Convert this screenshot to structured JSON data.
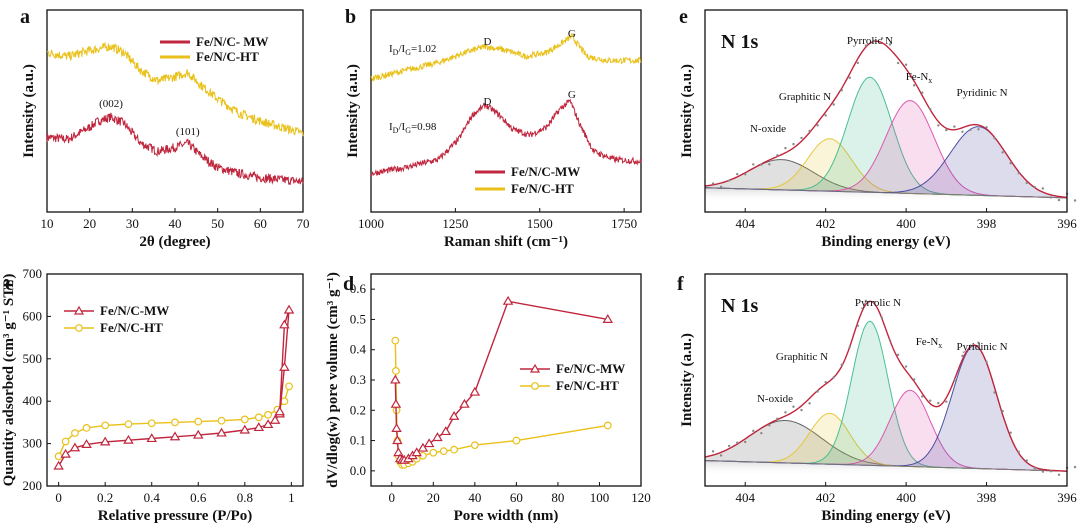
{
  "colors": {
    "mw": "#c0263d",
    "ht": "#e9c11a",
    "graphitic": "#e6c42a",
    "pyrrolic": "#39b98a",
    "fen": "#d94aa8",
    "pyridinic": "#3b3f9a",
    "noxide": "#555555",
    "envelope": "#c0263d"
  },
  "chart_data": [
    {
      "id": "a",
      "type": "line",
      "panel_label": "a",
      "xlabel": "2θ (degree)",
      "ylabel": "Intensity (a.u.)",
      "xlim": [
        10,
        70
      ],
      "xticks": [
        10,
        20,
        30,
        40,
        50,
        60,
        70
      ],
      "ylim": [
        0,
        1
      ],
      "legend": [
        "Fe/N/C- MW",
        "Fe/N/C-HT"
      ],
      "annotations": [
        "(002)",
        "(101)"
      ],
      "series": [
        {
          "name": "Fe/N/C- MW",
          "color": "mw",
          "x": [
            10,
            15,
            20,
            22,
            25,
            28,
            32,
            36,
            40,
            43,
            46,
            50,
            55,
            60,
            65,
            70
          ],
          "y": [
            0.37,
            0.36,
            0.42,
            0.45,
            0.47,
            0.44,
            0.34,
            0.3,
            0.32,
            0.34,
            0.28,
            0.22,
            0.19,
            0.17,
            0.16,
            0.15
          ]
        },
        {
          "name": "Fe/N/C-HT",
          "color": "ht",
          "x": [
            10,
            15,
            20,
            25,
            28,
            32,
            36,
            40,
            43,
            46,
            50,
            55,
            60,
            65,
            70
          ],
          "y": [
            0.79,
            0.77,
            0.8,
            0.82,
            0.79,
            0.7,
            0.65,
            0.67,
            0.69,
            0.63,
            0.56,
            0.49,
            0.45,
            0.42,
            0.39
          ]
        }
      ]
    },
    {
      "id": "b",
      "type": "line",
      "panel_label": "b",
      "xlabel": "Raman shift (cm⁻¹)",
      "ylabel": "Intensity (a.u.)",
      "xlim": [
        1000,
        1800
      ],
      "xticks": [
        1000,
        1250,
        1500,
        1750
      ],
      "ylim": [
        0,
        1
      ],
      "legend": [
        "Fe/N/C-MW",
        "Fe/N/C-HT"
      ],
      "annotations": [
        "I",
        "D",
        "/I",
        "G",
        "=1.02",
        "=0.98",
        "D",
        "G",
        "D",
        "G"
      ],
      "series": [
        {
          "name": "Fe/N/C-HT",
          "color": "ht",
          "x": [
            1000,
            1100,
            1200,
            1280,
            1340,
            1400,
            1460,
            1520,
            1560,
            1595,
            1640,
            1700,
            1800
          ],
          "y": [
            0.66,
            0.7,
            0.74,
            0.79,
            0.82,
            0.8,
            0.77,
            0.79,
            0.83,
            0.87,
            0.77,
            0.75,
            0.75
          ]
        },
        {
          "name": "Fe/N/C-MW",
          "color": "mw",
          "x": [
            1000,
            1100,
            1200,
            1260,
            1300,
            1340,
            1380,
            1420,
            1470,
            1520,
            1560,
            1590,
            1620,
            1660,
            1720,
            1800
          ],
          "y": [
            0.19,
            0.22,
            0.26,
            0.36,
            0.48,
            0.53,
            0.48,
            0.41,
            0.38,
            0.42,
            0.51,
            0.55,
            0.43,
            0.3,
            0.26,
            0.25
          ]
        }
      ]
    },
    {
      "id": "c",
      "type": "line",
      "panel_label": "c",
      "xlabel": "Relative pressure (P/Po)",
      "ylabel": "Quantity adsorbed (cm³ g⁻¹ STP)",
      "xlim": [
        -0.05,
        1.05
      ],
      "xticks": [
        0.0,
        0.2,
        0.4,
        0.6,
        0.8,
        1.0
      ],
      "ylim": [
        200,
        700
      ],
      "yticks": [
        200,
        300,
        400,
        500,
        600,
        700
      ],
      "legend": [
        "Fe/N/C-MW",
        "Fe/N/C-HT"
      ],
      "series": [
        {
          "name": "Fe/N/C-MW",
          "color": "mw",
          "x": [
            0.0,
            0.03,
            0.07,
            0.12,
            0.2,
            0.3,
            0.4,
            0.5,
            0.6,
            0.7,
            0.8,
            0.86,
            0.9,
            0.93,
            0.95,
            0.97,
            0.99,
            0.97,
            0.95
          ],
          "y": [
            247,
            275,
            290,
            298,
            304,
            308,
            312,
            316,
            320,
            325,
            332,
            338,
            345,
            355,
            370,
            480,
            615,
            580,
            375
          ]
        },
        {
          "name": "Fe/N/C-HT",
          "color": "ht",
          "x": [
            0.0,
            0.03,
            0.07,
            0.12,
            0.2,
            0.3,
            0.4,
            0.5,
            0.6,
            0.7,
            0.8,
            0.86,
            0.9,
            0.94,
            0.97,
            0.99
          ],
          "y": [
            270,
            305,
            325,
            337,
            343,
            346,
            348,
            350,
            352,
            354,
            357,
            362,
            368,
            380,
            400,
            435
          ]
        }
      ]
    },
    {
      "id": "d",
      "type": "line",
      "panel_label": "d",
      "xlabel": "Pore width (nm)",
      "ylabel": "dV/dlog(w) pore volume (cm³ g⁻¹)",
      "xlim": [
        -10,
        120
      ],
      "xticks": [
        0,
        20,
        40,
        60,
        80,
        100,
        120
      ],
      "ylim": [
        -0.05,
        0.65
      ],
      "yticks": [
        0.0,
        0.1,
        0.2,
        0.3,
        0.4,
        0.5,
        0.6
      ],
      "legend": [
        "Fe/N/C-MW",
        "Fe/N/C-HT"
      ],
      "series": [
        {
          "name": "Fe/N/C-MW",
          "color": "mw",
          "x": [
            1.7,
            2.0,
            2.3,
            2.7,
            3.2,
            4,
            5,
            6,
            8,
            10,
            12,
            15,
            18,
            22,
            26,
            30,
            35,
            40,
            56,
            104
          ],
          "y": [
            0.3,
            0.22,
            0.14,
            0.1,
            0.06,
            0.04,
            0.035,
            0.035,
            0.04,
            0.05,
            0.06,
            0.075,
            0.09,
            0.11,
            0.13,
            0.18,
            0.22,
            0.26,
            0.56,
            0.5
          ]
        },
        {
          "name": "Fe/N/C-HT",
          "color": "ht",
          "x": [
            1.7,
            2.0,
            2.3,
            2.7,
            3.2,
            4,
            5,
            6,
            8,
            10,
            12,
            15,
            20,
            25,
            30,
            40,
            60,
            104
          ],
          "y": [
            0.43,
            0.33,
            0.2,
            0.1,
            0.05,
            0.03,
            0.02,
            0.02,
            0.025,
            0.03,
            0.04,
            0.05,
            0.06,
            0.065,
            0.07,
            0.085,
            0.1,
            0.15
          ]
        }
      ]
    },
    {
      "id": "e",
      "type": "line",
      "panel_label": "e",
      "title": "N 1s",
      "xlabel": "Binding energy (eV)",
      "ylabel": "Intensity (a.u.)",
      "xlim": [
        405,
        396
      ],
      "xticks": [
        404,
        402,
        400,
        398,
        396
      ],
      "ylim": [
        0,
        1
      ],
      "components": [
        {
          "name": "N-oxide",
          "color": "noxide",
          "center": 403.1,
          "amp": 0.15,
          "sigma": 0.8
        },
        {
          "name": "Graphitic N",
          "color": "graphitic",
          "center": 401.9,
          "amp": 0.26,
          "sigma": 0.55
        },
        {
          "name": "Pyrrolic N",
          "color": "pyrrolic",
          "center": 400.9,
          "amp": 0.57,
          "sigma": 0.55
        },
        {
          "name": "Fe-N",
          "color": "fen",
          "center": 399.9,
          "amp": 0.46,
          "sigma": 0.6
        },
        {
          "name": "Pyridinic N",
          "color": "pyridinic",
          "center": 398.2,
          "amp": 0.34,
          "sigma": 0.7
        }
      ],
      "labels": [
        "N-oxide",
        "Graphitic N",
        "Pyrrolic N",
        "Fe-N",
        "x",
        "Pyridinic N"
      ]
    },
    {
      "id": "f",
      "type": "line",
      "panel_label": "f",
      "title": "N 1s",
      "xlabel": "Binding energy (eV)",
      "ylabel": "Intensity (a.u.)",
      "xlim": [
        405,
        396
      ],
      "xticks": [
        404,
        402,
        400,
        398,
        396
      ],
      "ylim": [
        0,
        1
      ],
      "components": [
        {
          "name": "N-oxide",
          "color": "noxide",
          "center": 403.0,
          "amp": 0.2,
          "sigma": 0.9
        },
        {
          "name": "Graphitic N",
          "color": "graphitic",
          "center": 401.9,
          "amp": 0.24,
          "sigma": 0.5
        },
        {
          "name": "Pyrrolic N",
          "color": "pyrrolic",
          "center": 400.9,
          "amp": 0.68,
          "sigma": 0.45
        },
        {
          "name": "Fe-N",
          "color": "fen",
          "center": 399.9,
          "amp": 0.36,
          "sigma": 0.5
        },
        {
          "name": "Pyridinic N",
          "color": "pyridinic",
          "center": 398.3,
          "amp": 0.58,
          "sigma": 0.55
        }
      ],
      "labels": [
        "N-oxide",
        "Graphitic N",
        "Pyrrolic N",
        "Fe-N",
        "x",
        "Pyridinic N"
      ]
    }
  ]
}
